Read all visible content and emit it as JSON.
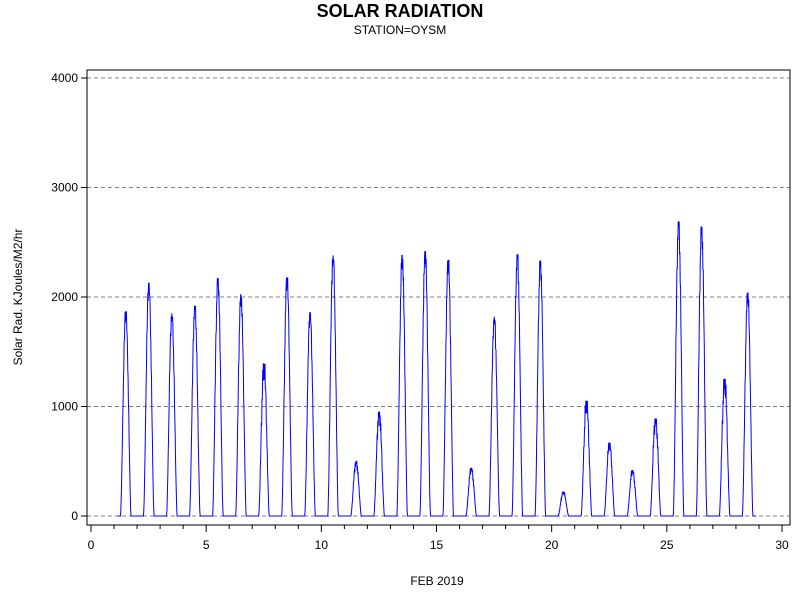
{
  "chart_data": {
    "type": "line",
    "title": "SOLAR RADIATION",
    "subtitle": "STATION=OYSM",
    "xlabel": "FEB 2019",
    "ylabel": "Solar Rad. KJoules/M2/hr",
    "xlim": [
      0,
      30
    ],
    "ylim": [
      0,
      4000
    ],
    "x_ticks": [
      0,
      5,
      10,
      15,
      20,
      25,
      30
    ],
    "y_ticks": [
      0,
      1000,
      2000,
      3000,
      4000
    ],
    "grid": "horizontal-dashed",
    "line_color": "#0000ff",
    "daily_peaks": [
      {
        "day": 1,
        "peak": 1870
      },
      {
        "day": 2,
        "peak": 2130
      },
      {
        "day": 3,
        "peak": 1850
      },
      {
        "day": 4,
        "peak": 1920
      },
      {
        "day": 5,
        "peak": 2170
      },
      {
        "day": 6,
        "peak": 2020
      },
      {
        "day": 7,
        "peak": 1390
      },
      {
        "day": 8,
        "peak": 2180
      },
      {
        "day": 9,
        "peak": 1860
      },
      {
        "day": 10,
        "peak": 2380
      },
      {
        "day": 11,
        "peak": 500
      },
      {
        "day": 12,
        "peak": 950
      },
      {
        "day": 13,
        "peak": 2380
      },
      {
        "day": 14,
        "peak": 2420
      },
      {
        "day": 15,
        "peak": 2340
      },
      {
        "day": 16,
        "peak": 440
      },
      {
        "day": 17,
        "peak": 1820
      },
      {
        "day": 18,
        "peak": 2390
      },
      {
        "day": 19,
        "peak": 2330
      },
      {
        "day": 20,
        "peak": 220
      },
      {
        "day": 21,
        "peak": 1050
      },
      {
        "day": 22,
        "peak": 670
      },
      {
        "day": 23,
        "peak": 420
      },
      {
        "day": 24,
        "peak": 890
      },
      {
        "day": 25,
        "peak": 2690
      },
      {
        "day": 26,
        "peak": 2640
      },
      {
        "day": 27,
        "peak": 1250
      },
      {
        "day": 28,
        "peak": 2040
      }
    ]
  }
}
